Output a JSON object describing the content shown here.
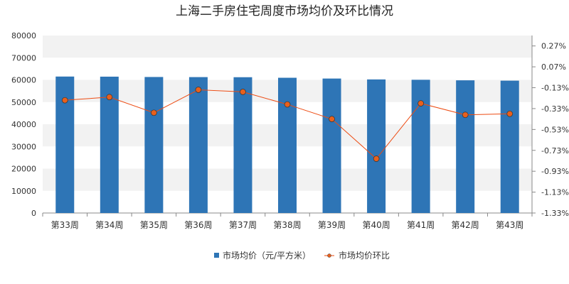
{
  "chart_data": {
    "type": "bar+line",
    "title": "上海二手房住宅周度市场均价及环比情况",
    "categories": [
      "第33周",
      "第34周",
      "第35周",
      "第36周",
      "第37周",
      "第38周",
      "第39周",
      "第40周",
      "第41周",
      "第42周",
      "第43周"
    ],
    "series": [
      {
        "name": "市场均价（元/平方米）",
        "type": "bar",
        "axis": "left",
        "color": "#2e75b6",
        "values": [
          61500,
          61450,
          61300,
          61250,
          61200,
          60950,
          60600,
          60200,
          60050,
          59800,
          59650
        ]
      },
      {
        "name": "市场均价环比",
        "type": "line",
        "axis": "right",
        "color": "#ed4b12",
        "marker_color": "#e8601c",
        "values": [
          -0.25,
          -0.22,
          -0.37,
          -0.15,
          -0.17,
          -0.29,
          -0.43,
          -0.81,
          -0.28,
          -0.39,
          -0.38
        ]
      }
    ],
    "left_axis": {
      "min": 0,
      "max": 80000,
      "ticks": [
        0,
        10000,
        20000,
        30000,
        40000,
        50000,
        60000,
        70000,
        80000
      ]
    },
    "right_axis": {
      "min": -1.33,
      "max": 0.37,
      "ticks": [
        -1.33,
        -1.13,
        -0.93,
        -0.73,
        -0.53,
        -0.33,
        -0.13,
        0.07,
        0.27
      ],
      "tick_labels": [
        "-1.33%",
        "-1.13%",
        "-0.93%",
        "-0.73%",
        "-0.53%",
        "-0.33%",
        "-0.13%",
        "0.07%",
        "0.27%"
      ]
    },
    "legend": {
      "position": "bottom-center"
    },
    "grid": "alternating-bands"
  }
}
